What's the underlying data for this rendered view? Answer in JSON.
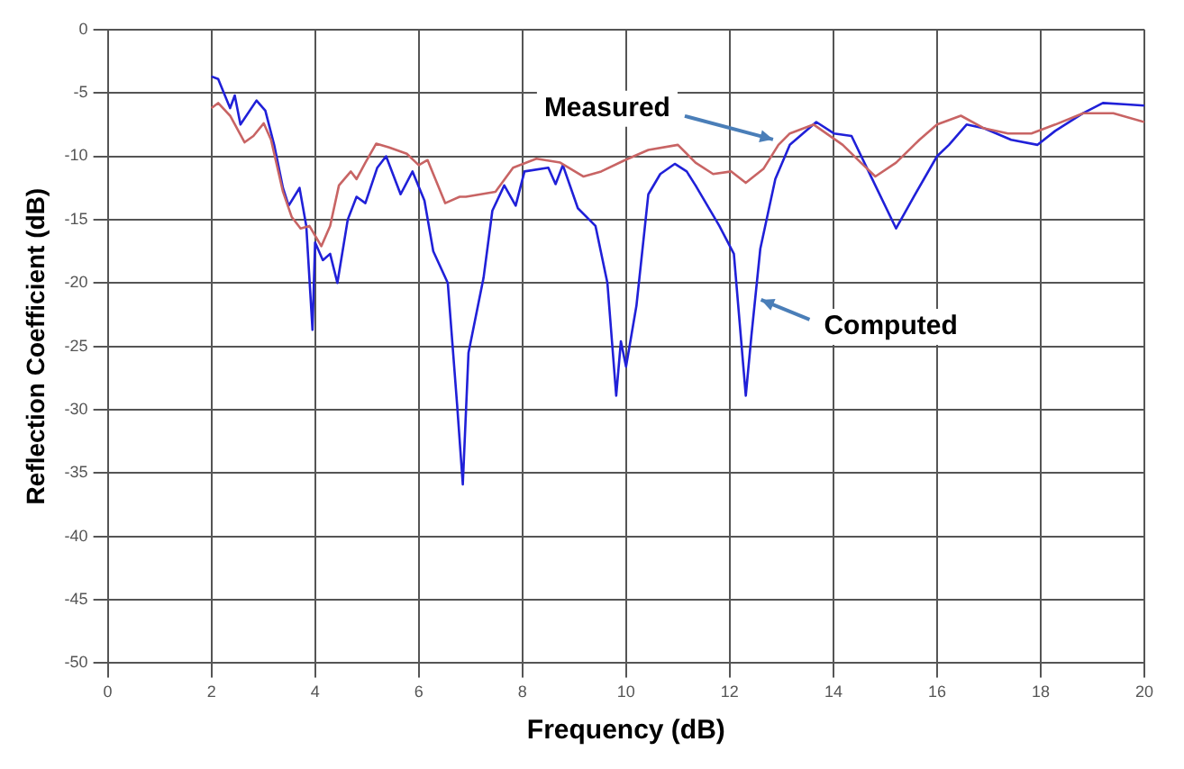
{
  "chart_data": {
    "type": "line",
    "xlabel": "Frequency (dB)",
    "ylabel": "Reflection Coefficient (dB)",
    "xlim": [
      0,
      20
    ],
    "xticks": [
      0,
      2,
      4,
      6,
      8,
      10,
      12,
      14,
      16,
      18,
      20
    ],
    "ylim": [
      -50,
      0
    ],
    "yticks": [
      -50,
      -45,
      -40,
      -35,
      -30,
      -25,
      -20,
      -15,
      -10,
      -5,
      0
    ],
    "grid": true,
    "legend": false,
    "marker": "none",
    "line_style": "solid",
    "annotations": [
      {
        "text": "Measured",
        "x": 12.94,
        "y": -9.1
      },
      {
        "text": "Computed",
        "x": 12.5,
        "y": -20.9
      }
    ],
    "series": [
      {
        "color": "#c86464",
        "x": [
          2.0,
          2.13,
          2.36,
          2.64,
          2.81,
          3.01,
          3.15,
          3.38,
          3.55,
          3.72,
          3.89,
          4.12,
          4.29,
          4.46,
          4.69,
          4.8,
          4.97,
          5.18,
          5.43,
          5.77,
          6.0,
          6.17,
          6.51,
          6.79,
          6.91,
          7.48,
          7.82,
          8.27,
          8.73,
          9.18,
          9.52,
          9.98,
          10.43,
          11.0,
          11.34,
          11.68,
          12.03,
          12.31,
          12.65,
          12.94,
          13.16,
          13.62,
          14.18,
          14.53,
          14.81,
          15.21,
          15.66,
          16.0,
          16.46,
          16.91,
          17.37,
          17.82,
          18.28,
          18.82,
          19.4,
          20.0
        ],
        "values": [
          -6.2,
          -5.8,
          -6.8,
          -8.9,
          -8.4,
          -7.4,
          -8.7,
          -12.8,
          -14.8,
          -15.7,
          -15.5,
          -17.1,
          -15.5,
          -12.3,
          -11.2,
          -11.8,
          -10.5,
          -9.0,
          -9.3,
          -9.8,
          -10.7,
          -10.3,
          -13.7,
          -13.2,
          -13.2,
          -12.8,
          -10.9,
          -10.2,
          -10.5,
          -11.6,
          -11.2,
          -10.3,
          -9.5,
          -9.1,
          -10.5,
          -11.4,
          -11.2,
          -12.1,
          -11.0,
          -9.1,
          -8.2,
          -7.5,
          -9.1,
          -10.5,
          -11.6,
          -10.5,
          -8.7,
          -7.5,
          -6.8,
          -7.8,
          -8.2,
          -8.2,
          -7.5,
          -6.6,
          -6.6,
          -7.3
        ]
      },
      {
        "color": "#2020d8",
        "x": [
          2.0,
          2.13,
          2.36,
          2.45,
          2.56,
          2.87,
          3.04,
          3.21,
          3.38,
          3.49,
          3.7,
          3.83,
          3.95,
          4.0,
          4.15,
          4.29,
          4.43,
          4.63,
          4.8,
          4.97,
          5.2,
          5.37,
          5.65,
          5.88,
          6.11,
          6.28,
          6.56,
          6.74,
          6.85,
          6.96,
          7.25,
          7.42,
          7.65,
          7.87,
          8.04,
          8.5,
          8.64,
          8.78,
          9.07,
          9.41,
          9.64,
          9.81,
          9.9,
          10.0,
          10.2,
          10.43,
          10.66,
          10.94,
          11.17,
          11.34,
          11.8,
          12.08,
          12.31,
          12.42,
          12.59,
          12.88,
          13.16,
          13.67,
          14.01,
          14.35,
          14.75,
          15.21,
          15.55,
          16.0,
          16.23,
          16.57,
          16.91,
          17.43,
          17.94,
          18.28,
          18.82,
          19.2,
          19.6,
          20.0
        ],
        "values": [
          -3.7,
          -3.9,
          -6.2,
          -5.2,
          -7.5,
          -5.6,
          -6.4,
          -9.1,
          -12.5,
          -13.9,
          -12.5,
          -15.5,
          -23.7,
          -16.8,
          -18.2,
          -17.7,
          -20.0,
          -15.0,
          -13.2,
          -13.7,
          -10.9,
          -10.0,
          -13.0,
          -11.2,
          -13.5,
          -17.5,
          -20.0,
          -29.6,
          -35.9,
          -25.5,
          -19.6,
          -14.3,
          -12.3,
          -13.9,
          -11.2,
          -10.9,
          -12.2,
          -10.7,
          -14.1,
          -15.5,
          -20.0,
          -28.9,
          -24.6,
          -26.6,
          -21.8,
          -13.0,
          -11.4,
          -10.6,
          -11.2,
          -12.3,
          -15.5,
          -17.7,
          -28.9,
          -24.1,
          -17.3,
          -11.8,
          -9.1,
          -7.3,
          -8.2,
          -8.4,
          -11.8,
          -15.7,
          -13.2,
          -10.0,
          -9.1,
          -7.5,
          -7.8,
          -8.7,
          -9.1,
          -8.0,
          -6.6,
          -5.8,
          -5.9,
          -6.0
        ]
      }
    ]
  }
}
